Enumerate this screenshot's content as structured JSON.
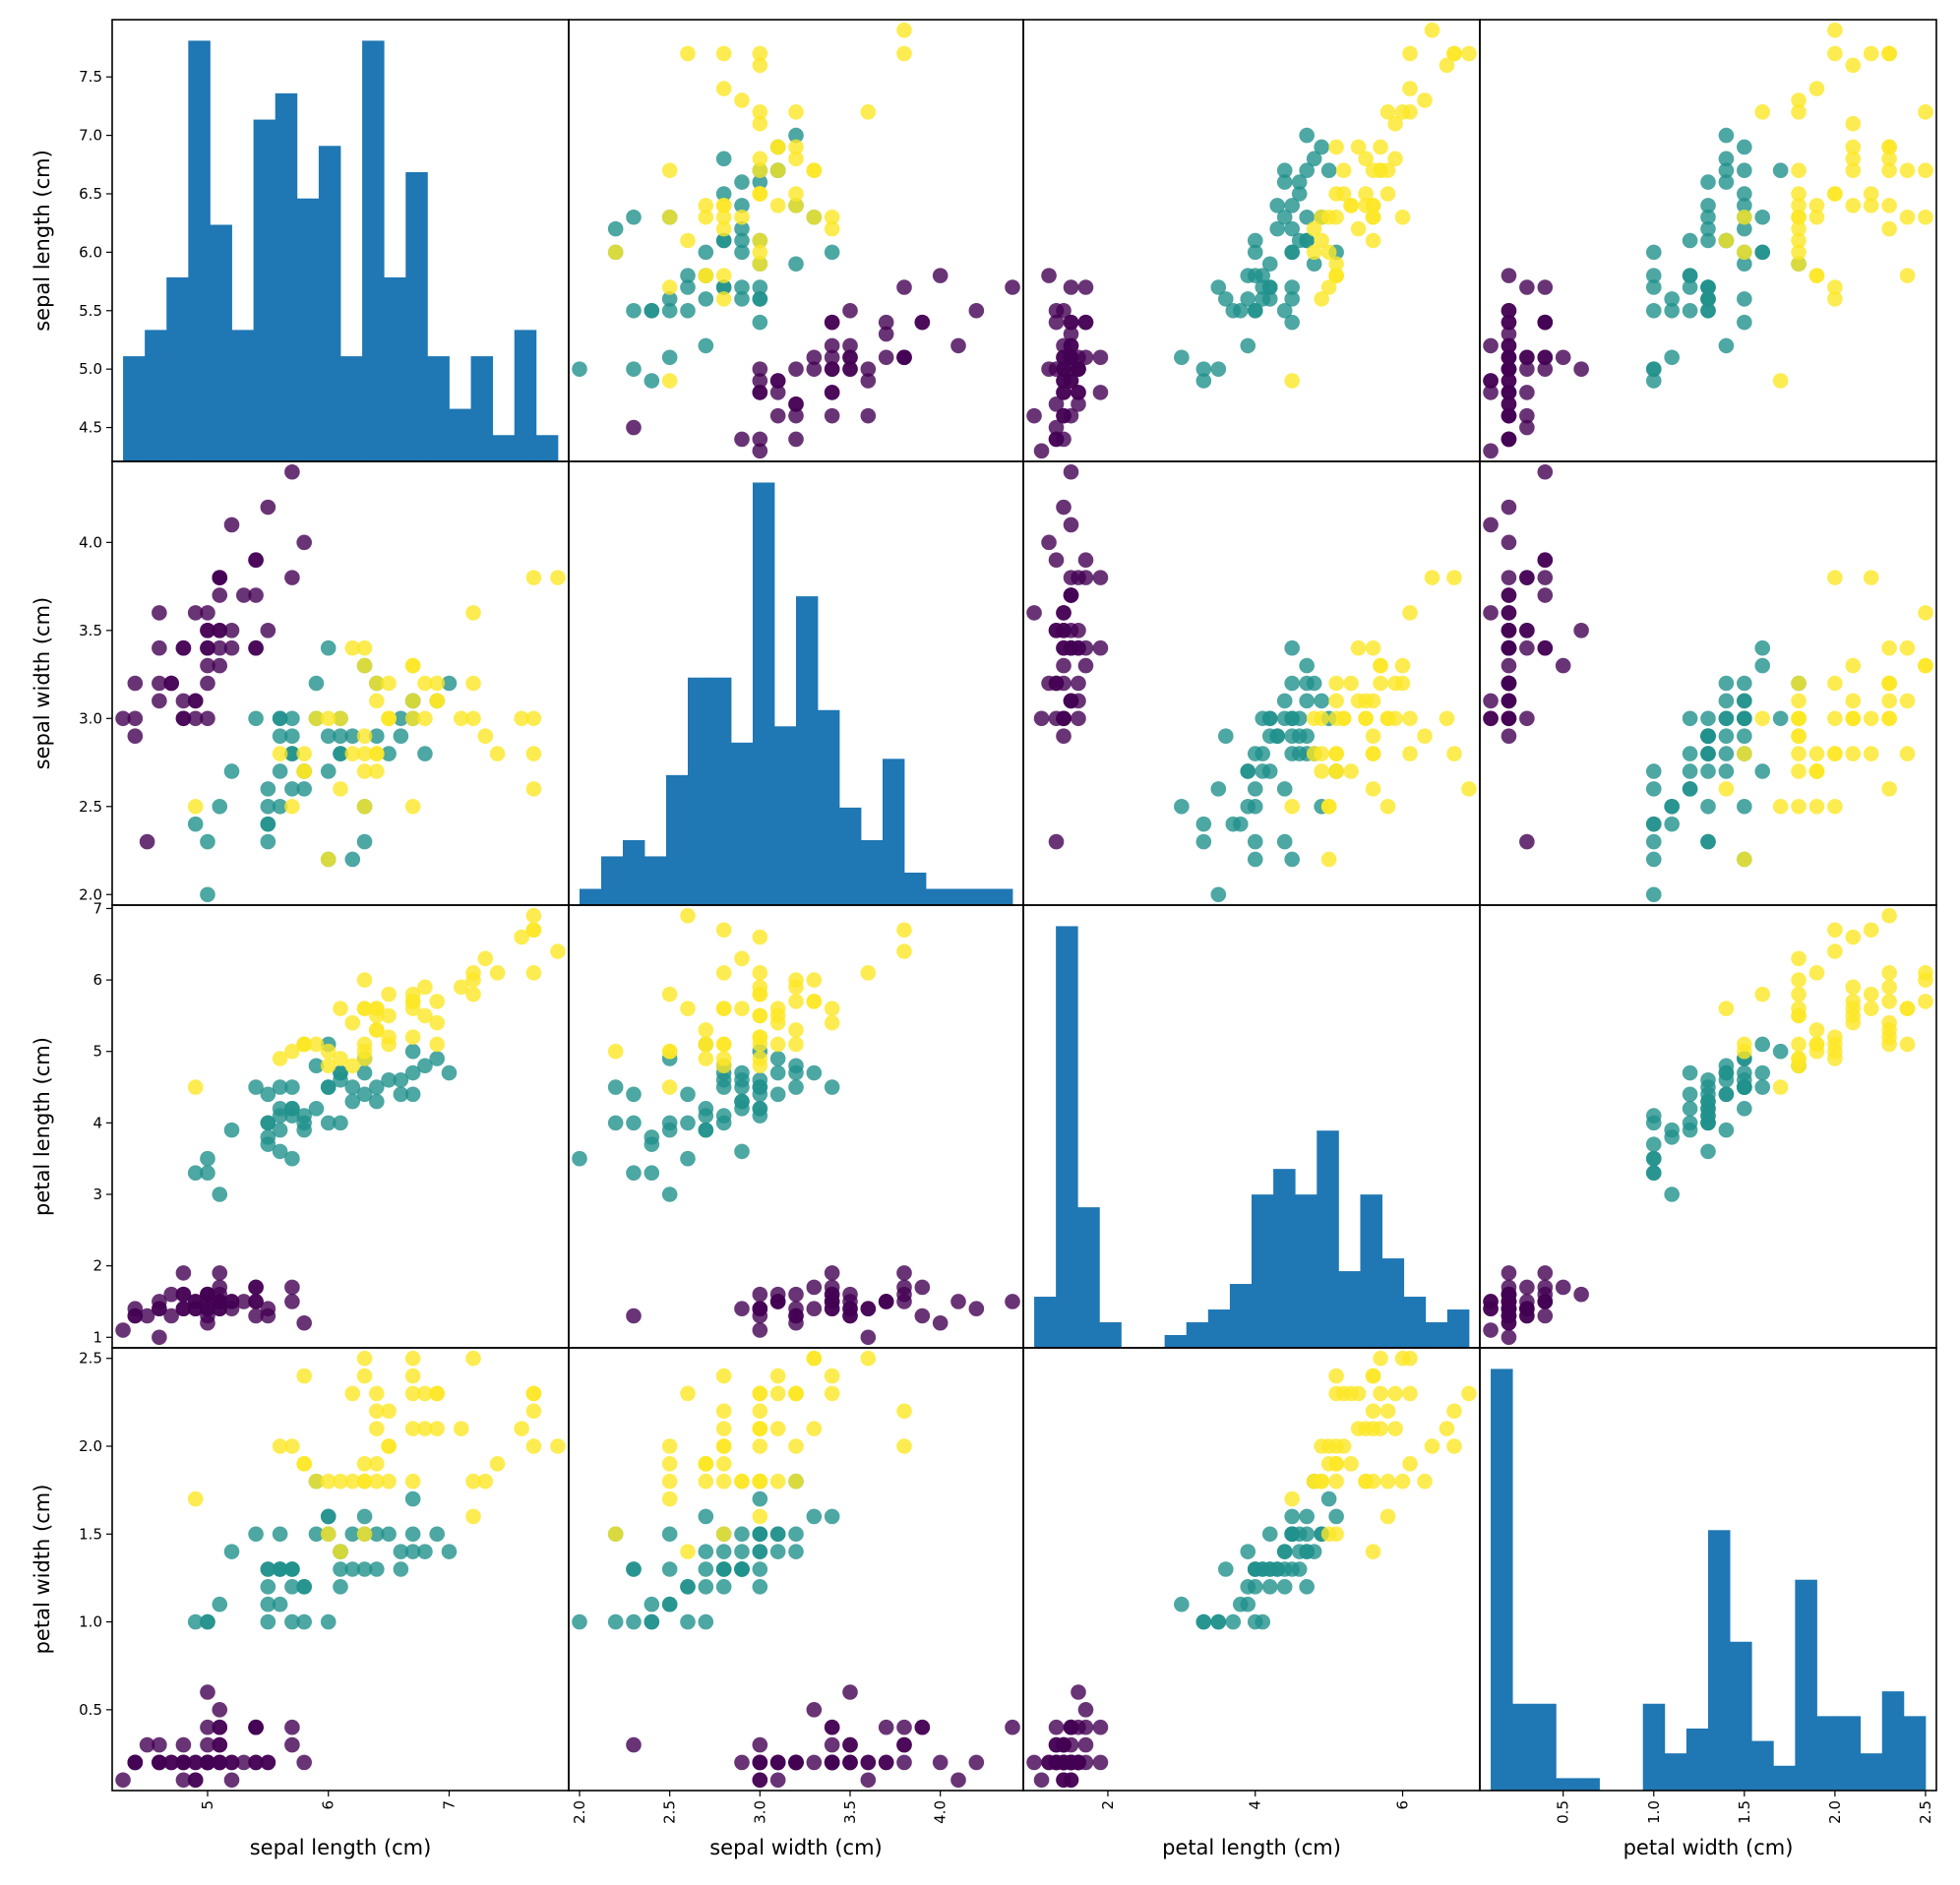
{
  "chart_data": {
    "type": "scatter",
    "variables": [
      "sepal length (cm)",
      "sepal width (cm)",
      "petal length (cm)",
      "petal width (cm)"
    ],
    "diagonal": "histogram",
    "hist_bins": 20,
    "hist_color": "#1f77b4",
    "class_colors": [
      "#440154",
      "#21918c",
      "#fde725"
    ],
    "marker_alpha": 0.8,
    "grid": false,
    "ranges": [
      [
        4.3,
        7.9
      ],
      [
        2.0,
        4.4
      ],
      [
        1.0,
        6.9
      ],
      [
        0.1,
        2.5
      ]
    ],
    "ticks": [
      {
        "values": [
          4.5,
          5.0,
          5.5,
          6.0,
          6.5,
          7.0,
          7.5
        ],
        "labels": [
          "4.5",
          "5.0",
          "5.5",
          "6.0",
          "6.5",
          "7.0",
          "7.5"
        ]
      },
      {
        "values": [
          2.0,
          2.5,
          3.0,
          3.5,
          4.0
        ],
        "labels": [
          "2.0",
          "2.5",
          "3.0",
          "3.5",
          "4.0"
        ]
      },
      {
        "values": [
          1,
          2,
          3,
          4,
          5,
          6,
          7
        ],
        "labels": [
          "1",
          "2",
          "3",
          "4",
          "5",
          "6",
          "7"
        ]
      },
      {
        "values": [
          0.5,
          1.0,
          1.5,
          2.0,
          2.5
        ],
        "labels": [
          "0.5",
          "1.0",
          "1.5",
          "2.0",
          "2.5"
        ]
      }
    ],
    "x_ticks": [
      {
        "values": [
          5,
          6,
          7
        ],
        "labels": [
          "5",
          "6",
          "7"
        ]
      },
      {
        "values": [
          2.0,
          2.5,
          3.0,
          3.5,
          4.0
        ],
        "labels": [
          "2.0",
          "2.5",
          "3.0",
          "3.5",
          "4.0"
        ]
      },
      {
        "values": [
          2,
          4,
          6
        ],
        "labels": [
          "2",
          "4",
          "6"
        ]
      },
      {
        "values": [
          0.5,
          1.0,
          1.5,
          2.0,
          2.5
        ],
        "labels": [
          "0.5",
          "1.0",
          "1.5",
          "2.0",
          "2.5"
        ]
      }
    ],
    "points": [
      [
        5.1,
        3.5,
        1.4,
        0.2,
        0
      ],
      [
        4.9,
        3.0,
        1.4,
        0.2,
        0
      ],
      [
        4.7,
        3.2,
        1.3,
        0.2,
        0
      ],
      [
        4.6,
        3.1,
        1.5,
        0.2,
        0
      ],
      [
        5.0,
        3.6,
        1.4,
        0.2,
        0
      ],
      [
        5.4,
        3.9,
        1.7,
        0.4,
        0
      ],
      [
        4.6,
        3.4,
        1.4,
        0.3,
        0
      ],
      [
        5.0,
        3.4,
        1.5,
        0.2,
        0
      ],
      [
        4.4,
        2.9,
        1.4,
        0.2,
        0
      ],
      [
        4.9,
        3.1,
        1.5,
        0.1,
        0
      ],
      [
        5.4,
        3.7,
        1.5,
        0.2,
        0
      ],
      [
        4.8,
        3.4,
        1.6,
        0.2,
        0
      ],
      [
        4.8,
        3.0,
        1.4,
        0.1,
        0
      ],
      [
        4.3,
        3.0,
        1.1,
        0.1,
        0
      ],
      [
        5.8,
        4.0,
        1.2,
        0.2,
        0
      ],
      [
        5.7,
        4.4,
        1.5,
        0.4,
        0
      ],
      [
        5.4,
        3.9,
        1.3,
        0.4,
        0
      ],
      [
        5.1,
        3.5,
        1.4,
        0.3,
        0
      ],
      [
        5.7,
        3.8,
        1.7,
        0.3,
        0
      ],
      [
        5.1,
        3.8,
        1.5,
        0.3,
        0
      ],
      [
        5.4,
        3.4,
        1.7,
        0.2,
        0
      ],
      [
        5.1,
        3.7,
        1.5,
        0.4,
        0
      ],
      [
        4.6,
        3.6,
        1.0,
        0.2,
        0
      ],
      [
        5.1,
        3.3,
        1.7,
        0.5,
        0
      ],
      [
        4.8,
        3.4,
        1.9,
        0.2,
        0
      ],
      [
        5.0,
        3.0,
        1.6,
        0.2,
        0
      ],
      [
        5.0,
        3.4,
        1.6,
        0.4,
        0
      ],
      [
        5.2,
        3.5,
        1.5,
        0.2,
        0
      ],
      [
        5.2,
        3.4,
        1.4,
        0.2,
        0
      ],
      [
        4.7,
        3.2,
        1.6,
        0.2,
        0
      ],
      [
        4.8,
        3.1,
        1.6,
        0.2,
        0
      ],
      [
        5.4,
        3.4,
        1.5,
        0.4,
        0
      ],
      [
        5.2,
        4.1,
        1.5,
        0.1,
        0
      ],
      [
        5.5,
        4.2,
        1.4,
        0.2,
        0
      ],
      [
        4.9,
        3.1,
        1.5,
        0.2,
        0
      ],
      [
        5.0,
        3.2,
        1.2,
        0.2,
        0
      ],
      [
        5.5,
        3.5,
        1.3,
        0.2,
        0
      ],
      [
        4.9,
        3.6,
        1.4,
        0.1,
        0
      ],
      [
        4.4,
        3.0,
        1.3,
        0.2,
        0
      ],
      [
        5.1,
        3.4,
        1.5,
        0.2,
        0
      ],
      [
        5.0,
        3.5,
        1.3,
        0.3,
        0
      ],
      [
        4.5,
        2.3,
        1.3,
        0.3,
        0
      ],
      [
        4.4,
        3.2,
        1.3,
        0.2,
        0
      ],
      [
        5.0,
        3.5,
        1.6,
        0.6,
        0
      ],
      [
        5.1,
        3.8,
        1.9,
        0.4,
        0
      ],
      [
        4.8,
        3.0,
        1.4,
        0.3,
        0
      ],
      [
        5.1,
        3.8,
        1.6,
        0.2,
        0
      ],
      [
        4.6,
        3.2,
        1.4,
        0.2,
        0
      ],
      [
        5.3,
        3.7,
        1.5,
        0.2,
        0
      ],
      [
        5.0,
        3.3,
        1.4,
        0.2,
        0
      ],
      [
        7.0,
        3.2,
        4.7,
        1.4,
        1
      ],
      [
        6.4,
        3.2,
        4.5,
        1.5,
        1
      ],
      [
        6.9,
        3.1,
        4.9,
        1.5,
        1
      ],
      [
        5.5,
        2.3,
        4.0,
        1.3,
        1
      ],
      [
        6.5,
        2.8,
        4.6,
        1.5,
        1
      ],
      [
        5.7,
        2.8,
        4.5,
        1.3,
        1
      ],
      [
        6.3,
        3.3,
        4.7,
        1.6,
        1
      ],
      [
        4.9,
        2.4,
        3.3,
        1.0,
        1
      ],
      [
        6.6,
        2.9,
        4.6,
        1.3,
        1
      ],
      [
        5.2,
        2.7,
        3.9,
        1.4,
        1
      ],
      [
        5.0,
        2.0,
        3.5,
        1.0,
        1
      ],
      [
        5.9,
        3.0,
        4.2,
        1.5,
        1
      ],
      [
        6.0,
        2.2,
        4.0,
        1.0,
        1
      ],
      [
        6.1,
        2.9,
        4.7,
        1.4,
        1
      ],
      [
        5.6,
        2.9,
        3.6,
        1.3,
        1
      ],
      [
        6.7,
        3.1,
        4.4,
        1.4,
        1
      ],
      [
        5.6,
        3.0,
        4.5,
        1.5,
        1
      ],
      [
        5.8,
        2.7,
        4.1,
        1.0,
        1
      ],
      [
        6.2,
        2.2,
        4.5,
        1.5,
        1
      ],
      [
        5.6,
        2.5,
        3.9,
        1.1,
        1
      ],
      [
        5.9,
        3.2,
        4.8,
        1.8,
        1
      ],
      [
        6.1,
        2.8,
        4.0,
        1.3,
        1
      ],
      [
        6.3,
        2.5,
        4.9,
        1.5,
        1
      ],
      [
        6.1,
        2.8,
        4.7,
        1.2,
        1
      ],
      [
        6.4,
        2.9,
        4.3,
        1.3,
        1
      ],
      [
        6.6,
        3.0,
        4.4,
        1.4,
        1
      ],
      [
        6.8,
        2.8,
        4.8,
        1.4,
        1
      ],
      [
        6.7,
        3.0,
        5.0,
        1.7,
        1
      ],
      [
        6.0,
        2.9,
        4.5,
        1.5,
        1
      ],
      [
        5.7,
        2.6,
        3.5,
        1.0,
        1
      ],
      [
        5.5,
        2.4,
        3.8,
        1.1,
        1
      ],
      [
        5.5,
        2.4,
        3.7,
        1.0,
        1
      ],
      [
        5.8,
        2.7,
        3.9,
        1.2,
        1
      ],
      [
        6.0,
        2.7,
        5.1,
        1.6,
        1
      ],
      [
        5.4,
        3.0,
        4.5,
        1.5,
        1
      ],
      [
        6.0,
        3.4,
        4.5,
        1.6,
        1
      ],
      [
        6.7,
        3.1,
        4.7,
        1.5,
        1
      ],
      [
        6.3,
        2.3,
        4.4,
        1.3,
        1
      ],
      [
        5.6,
        3.0,
        4.1,
        1.3,
        1
      ],
      [
        5.5,
        2.5,
        4.0,
        1.3,
        1
      ],
      [
        5.5,
        2.6,
        4.4,
        1.2,
        1
      ],
      [
        6.1,
        3.0,
        4.6,
        1.4,
        1
      ],
      [
        5.8,
        2.6,
        4.0,
        1.2,
        1
      ],
      [
        5.0,
        2.3,
        3.3,
        1.0,
        1
      ],
      [
        5.6,
        2.7,
        4.2,
        1.3,
        1
      ],
      [
        5.7,
        3.0,
        4.2,
        1.2,
        1
      ],
      [
        5.7,
        2.9,
        4.2,
        1.3,
        1
      ],
      [
        6.2,
        2.9,
        4.3,
        1.3,
        1
      ],
      [
        5.1,
        2.5,
        3.0,
        1.1,
        1
      ],
      [
        5.7,
        2.8,
        4.1,
        1.3,
        1
      ],
      [
        6.3,
        3.3,
        6.0,
        2.5,
        2
      ],
      [
        5.8,
        2.7,
        5.1,
        1.9,
        2
      ],
      [
        7.1,
        3.0,
        5.9,
        2.1,
        2
      ],
      [
        6.3,
        2.9,
        5.6,
        1.8,
        2
      ],
      [
        6.5,
        3.0,
        5.8,
        2.2,
        2
      ],
      [
        7.6,
        3.0,
        6.6,
        2.1,
        2
      ],
      [
        4.9,
        2.5,
        4.5,
        1.7,
        2
      ],
      [
        7.3,
        2.9,
        6.3,
        1.8,
        2
      ],
      [
        6.7,
        2.5,
        5.8,
        1.8,
        2
      ],
      [
        7.2,
        3.6,
        6.1,
        2.5,
        2
      ],
      [
        6.5,
        3.2,
        5.1,
        2.0,
        2
      ],
      [
        6.4,
        2.7,
        5.3,
        1.9,
        2
      ],
      [
        6.8,
        3.0,
        5.5,
        2.1,
        2
      ],
      [
        5.7,
        2.5,
        5.0,
        2.0,
        2
      ],
      [
        5.8,
        2.8,
        5.1,
        2.4,
        2
      ],
      [
        6.4,
        3.2,
        5.3,
        2.3,
        2
      ],
      [
        6.5,
        3.0,
        5.5,
        1.8,
        2
      ],
      [
        7.7,
        3.8,
        6.7,
        2.2,
        2
      ],
      [
        7.7,
        2.6,
        6.9,
        2.3,
        2
      ],
      [
        6.0,
        2.2,
        5.0,
        1.5,
        2
      ],
      [
        6.9,
        3.2,
        5.7,
        2.3,
        2
      ],
      [
        5.6,
        2.8,
        4.9,
        2.0,
        2
      ],
      [
        7.7,
        2.8,
        6.7,
        2.0,
        2
      ],
      [
        6.3,
        2.7,
        4.9,
        1.8,
        2
      ],
      [
        6.7,
        3.3,
        5.7,
        2.1,
        2
      ],
      [
        7.2,
        3.2,
        6.0,
        1.8,
        2
      ],
      [
        6.2,
        2.8,
        4.8,
        1.8,
        2
      ],
      [
        6.1,
        3.0,
        4.9,
        1.8,
        2
      ],
      [
        6.4,
        2.8,
        5.6,
        2.1,
        2
      ],
      [
        7.2,
        3.0,
        5.8,
        1.6,
        2
      ],
      [
        7.4,
        2.8,
        6.1,
        1.9,
        2
      ],
      [
        7.9,
        3.8,
        6.4,
        2.0,
        2
      ],
      [
        6.4,
        2.8,
        5.6,
        2.2,
        2
      ],
      [
        6.3,
        2.8,
        5.1,
        1.5,
        2
      ],
      [
        6.1,
        2.6,
        5.6,
        1.4,
        2
      ],
      [
        7.7,
        3.0,
        6.1,
        2.3,
        2
      ],
      [
        6.3,
        3.4,
        5.6,
        2.4,
        2
      ],
      [
        6.4,
        3.1,
        5.5,
        1.8,
        2
      ],
      [
        6.0,
        3.0,
        4.8,
        1.8,
        2
      ],
      [
        6.9,
        3.1,
        5.4,
        2.1,
        2
      ],
      [
        6.7,
        3.1,
        5.6,
        2.4,
        2
      ],
      [
        6.9,
        3.1,
        5.1,
        2.3,
        2
      ],
      [
        5.8,
        2.7,
        5.1,
        1.9,
        2
      ],
      [
        6.8,
        3.2,
        5.9,
        2.3,
        2
      ],
      [
        6.7,
        3.3,
        5.7,
        2.5,
        2
      ],
      [
        6.7,
        3.0,
        5.2,
        2.3,
        2
      ],
      [
        6.3,
        2.5,
        5.0,
        1.9,
        2
      ],
      [
        6.5,
        3.0,
        5.2,
        2.0,
        2
      ],
      [
        6.2,
        3.4,
        5.4,
        2.3,
        2
      ],
      [
        5.9,
        3.0,
        5.1,
        1.8,
        2
      ]
    ]
  }
}
